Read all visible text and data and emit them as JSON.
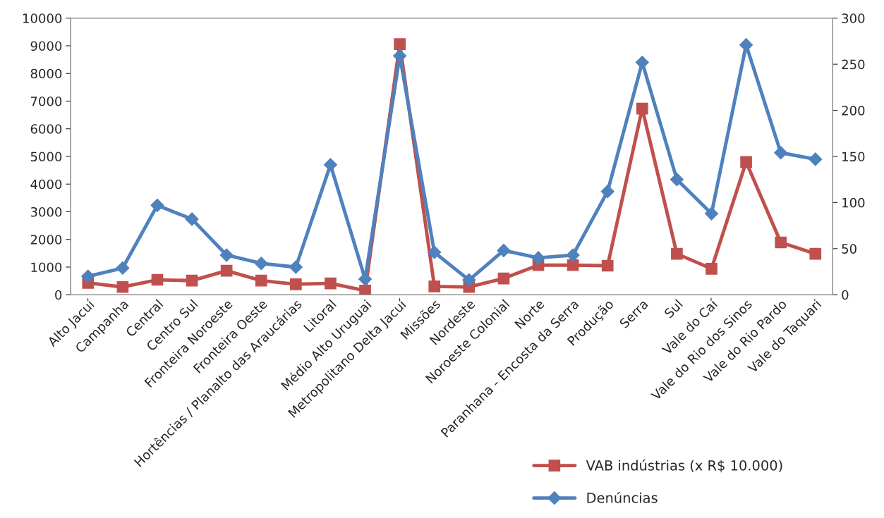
{
  "chart_data": {
    "type": "line",
    "categories": [
      "Alto Jacuí",
      "Campanha",
      "Central",
      "Centro Sul",
      "Fronteira Noroeste",
      "Fronteira Oeste",
      "Hortências / Planalto das Araucárias",
      "Litoral",
      "Médio Alto Uruguai",
      "Metropolitano Delta Jacuí",
      "Missões",
      "Nordeste",
      "Noroeste Colonial",
      "Norte",
      "Paranhana - Encosta da Serra",
      "Produção",
      "Serra",
      "Sul",
      "Vale do Caí",
      "Vale do Rio dos Sinos",
      "Vale do Rio Pardo",
      "Vale do Taquari"
    ],
    "series": [
      {
        "name": "VAB indústrias (x R$ 10.000)",
        "color": "#c0504d",
        "marker": "square",
        "values": [
          430,
          280,
          540,
          510,
          870,
          510,
          380,
          410,
          150,
          9060,
          300,
          280,
          590,
          1070,
          1070,
          1050,
          6730,
          1480,
          940,
          4800,
          1890,
          1480
        ]
      },
      {
        "name": "Denúncias",
        "color": "#4f81bd",
        "marker": "diamond",
        "axis": "y2",
        "values": [
          20,
          29,
          97,
          82,
          43,
          34,
          30,
          141,
          17,
          259,
          46,
          16,
          48,
          40,
          43,
          112,
          252,
          125,
          88,
          271,
          154,
          147
        ]
      }
    ],
    "ylim": [
      0,
      10000
    ],
    "yticks": [
      0,
      1000,
      2000,
      3000,
      4000,
      5000,
      6000,
      7000,
      8000,
      9000,
      10000
    ],
    "y2lim": [
      0,
      300
    ],
    "y2ticks": [
      0,
      50,
      100,
      150,
      200,
      250,
      300
    ],
    "grid": false,
    "legend": "bottom right"
  }
}
